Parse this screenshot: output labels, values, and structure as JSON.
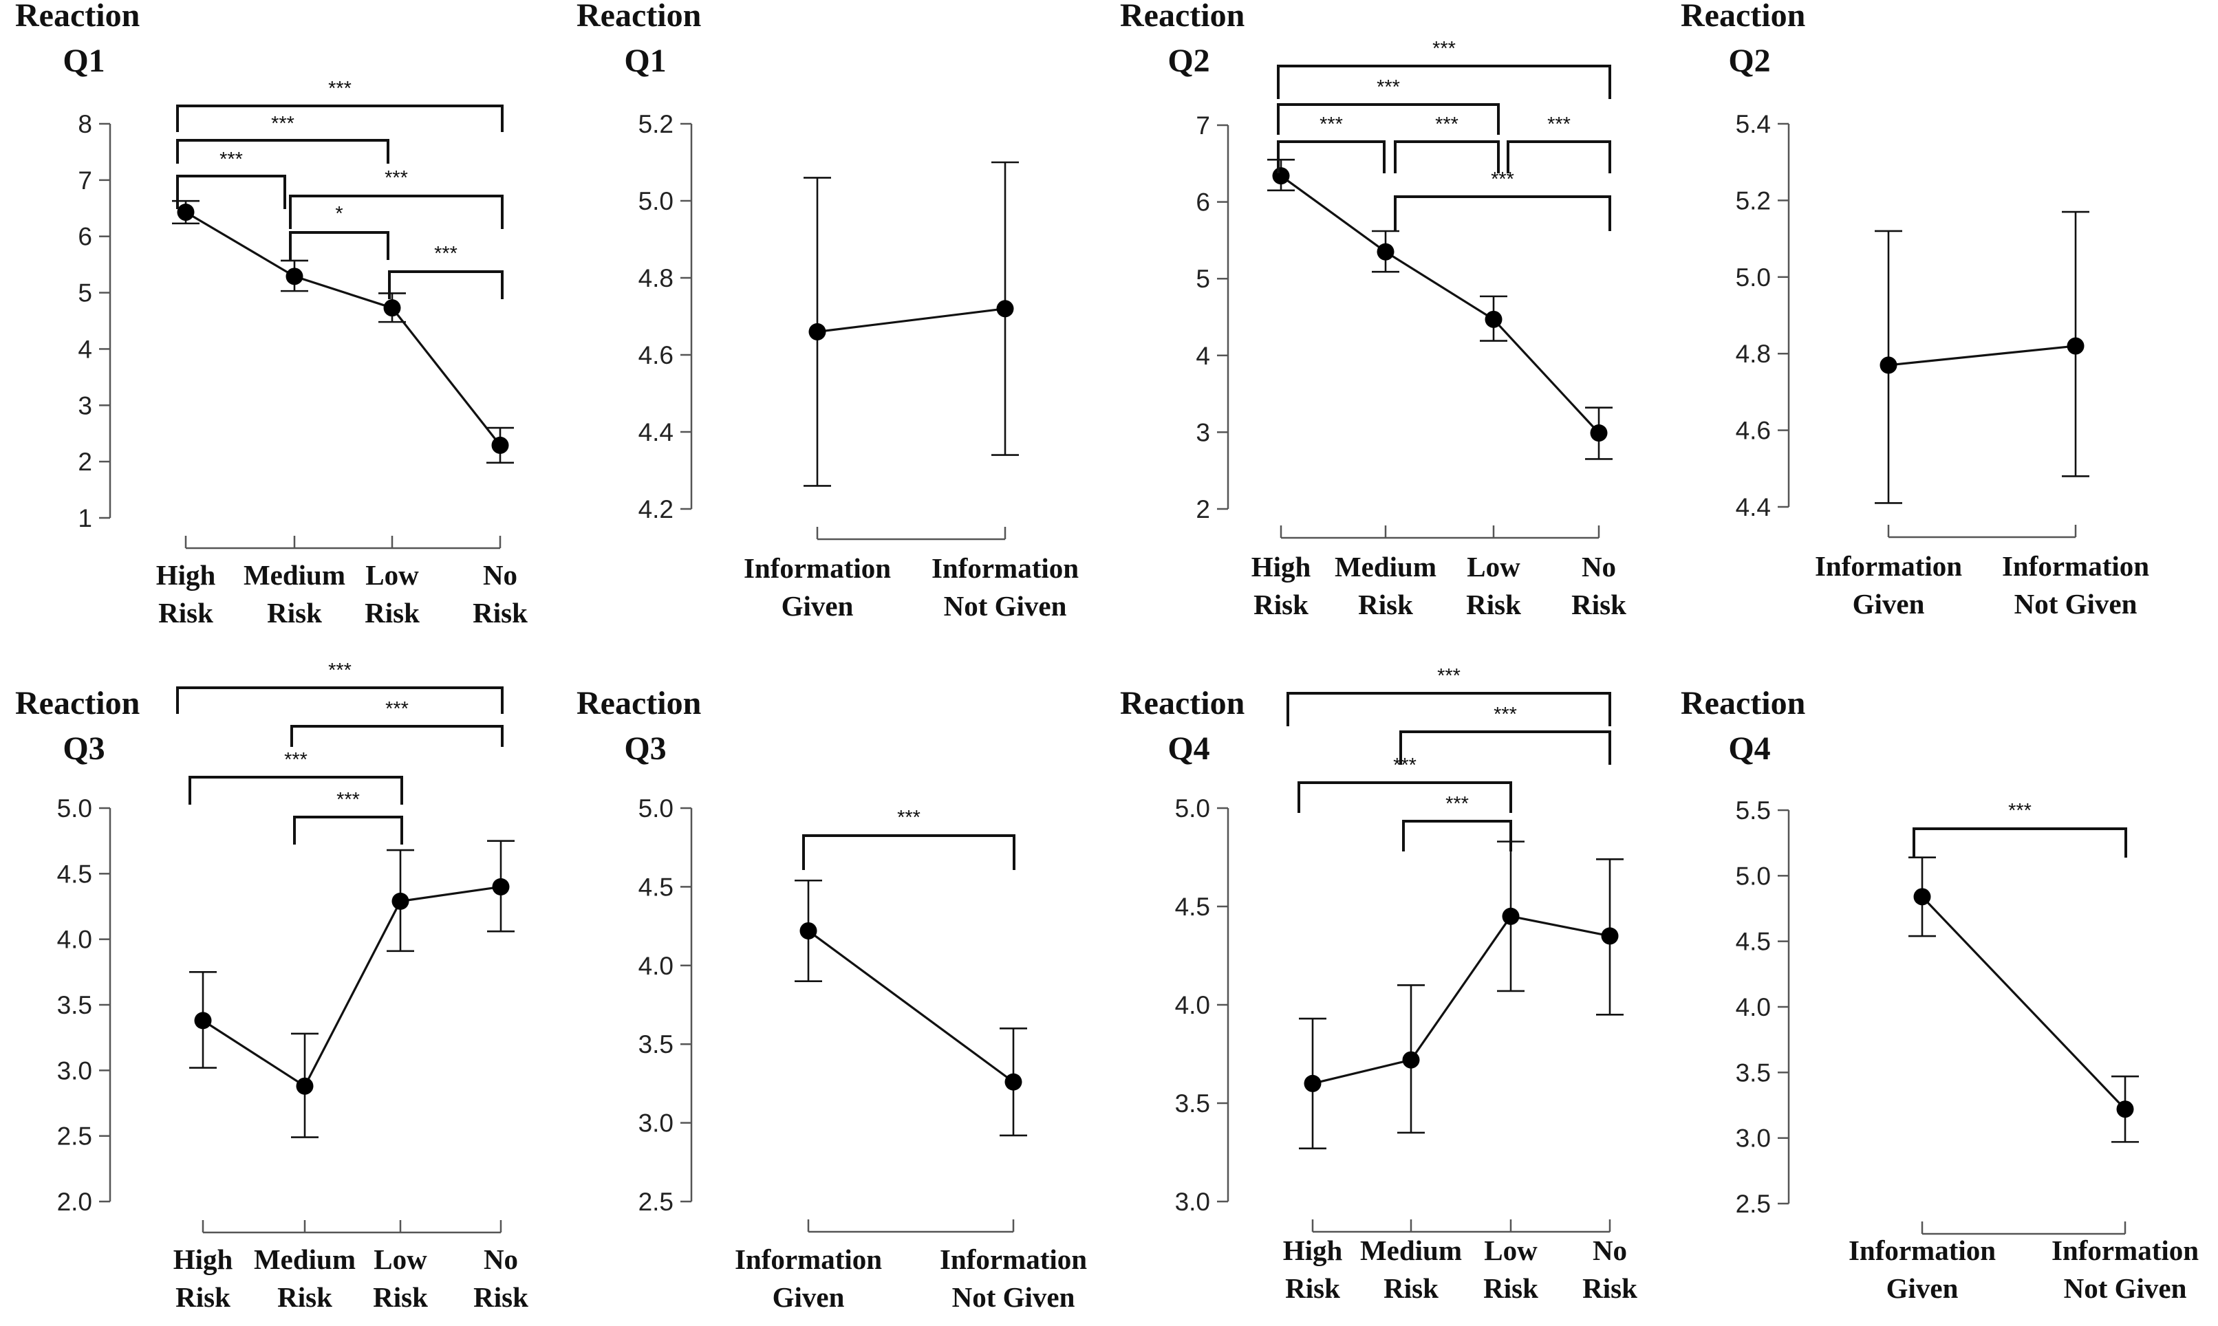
{
  "chart_data": [
    {
      "type": "line",
      "title": [
        "Reaction",
        "Q1"
      ],
      "categories": [
        [
          "High",
          "Risk"
        ],
        [
          "Medium",
          "Risk"
        ],
        [
          "Low",
          "Risk"
        ],
        [
          "No",
          "Risk"
        ]
      ],
      "values": [
        6.43,
        5.29,
        4.73,
        2.29
      ],
      "errors_low": [
        6.23,
        5.03,
        4.48,
        1.98
      ],
      "errors_high": [
        6.63,
        5.57,
        4.99,
        2.6
      ],
      "ylim": [
        1,
        8
      ],
      "yticks": [
        "1",
        "2",
        "3",
        "4",
        "5",
        "6",
        "7",
        "8"
      ],
      "comparisons": [
        {
          "from": 0,
          "to": 3,
          "label": "***"
        },
        {
          "from": 0,
          "to": 2,
          "label": "***"
        },
        {
          "from": 0,
          "to": 1,
          "label": "***"
        },
        {
          "from": 1,
          "to": 3,
          "label": "***"
        },
        {
          "from": 1,
          "to": 2,
          "label": "*"
        },
        {
          "from": 2,
          "to": 3,
          "label": "***"
        }
      ]
    },
    {
      "type": "line",
      "title": [
        "Reaction",
        "Q1"
      ],
      "categories": [
        [
          "Information",
          "Given"
        ],
        [
          "Information",
          "Not Given"
        ]
      ],
      "values": [
        4.66,
        4.72
      ],
      "errors_low": [
        4.26,
        4.34
      ],
      "errors_high": [
        5.06,
        5.1
      ],
      "ylim": [
        4.2,
        5.2
      ],
      "yticks": [
        "4.2",
        "4.4",
        "4.6",
        "4.8",
        "5.0",
        "5.2"
      ],
      "comparisons": []
    },
    {
      "type": "line",
      "title": [
        "Reaction",
        "Q2"
      ],
      "categories": [
        [
          "High",
          "Risk"
        ],
        [
          "Medium",
          "Risk"
        ],
        [
          "Low",
          "Risk"
        ],
        [
          "No",
          "Risk"
        ]
      ],
      "values": [
        6.34,
        5.35,
        4.47,
        2.99
      ],
      "errors_low": [
        6.15,
        5.09,
        4.19,
        2.65
      ],
      "errors_high": [
        6.55,
        5.62,
        4.77,
        3.32
      ],
      "ylim": [
        2,
        7
      ],
      "yticks": [
        "2",
        "3",
        "4",
        "5",
        "6",
        "7"
      ],
      "comparisons": [
        {
          "from": 0,
          "to": 3,
          "label": "***"
        },
        {
          "from": 0,
          "to": 2,
          "label": "***"
        },
        {
          "from": 0,
          "to": 1,
          "label": "***"
        },
        {
          "from": 1,
          "to": 2,
          "label": "***"
        },
        {
          "from": 2,
          "to": 3,
          "label": "***"
        },
        {
          "from": 1,
          "to": 3,
          "label": "***"
        }
      ]
    },
    {
      "type": "line",
      "title": [
        "Reaction",
        "Q2"
      ],
      "categories": [
        [
          "Information",
          "Given"
        ],
        [
          "Information",
          "Not Given"
        ]
      ],
      "values": [
        4.77,
        4.82
      ],
      "errors_low": [
        4.41,
        4.48
      ],
      "errors_high": [
        5.12,
        5.17
      ],
      "ylim": [
        4.4,
        5.4
      ],
      "yticks": [
        "4.4",
        "4.6",
        "4.8",
        "5.0",
        "5.2",
        "5.4"
      ],
      "comparisons": []
    },
    {
      "type": "line",
      "title": [
        "Reaction",
        "Q3"
      ],
      "categories": [
        [
          "High",
          "Risk"
        ],
        [
          "Medium",
          "Risk"
        ],
        [
          "Low",
          "Risk"
        ],
        [
          "No",
          "Risk"
        ]
      ],
      "values": [
        3.38,
        2.88,
        4.29,
        4.4
      ],
      "errors_low": [
        3.02,
        2.49,
        3.91,
        4.06
      ],
      "errors_high": [
        3.75,
        3.28,
        4.68,
        4.75
      ],
      "ylim": [
        2.0,
        5.0
      ],
      "yticks": [
        "2.0",
        "2.5",
        "3.0",
        "3.5",
        "4.0",
        "4.5",
        "5.0"
      ],
      "comparisons": [
        {
          "from": 0,
          "to": 3,
          "label": "***"
        },
        {
          "from": 1,
          "to": 3,
          "label": "***"
        },
        {
          "from": 0,
          "to": 2,
          "label": "***"
        },
        {
          "from": 1,
          "to": 2,
          "label": "***"
        }
      ]
    },
    {
      "type": "line",
      "title": [
        "Reaction",
        "Q3"
      ],
      "categories": [
        [
          "Information",
          "Given"
        ],
        [
          "Information",
          "Not Given"
        ]
      ],
      "values": [
        4.22,
        3.26
      ],
      "errors_low": [
        3.9,
        2.92
      ],
      "errors_high": [
        4.54,
        3.6
      ],
      "ylim": [
        2.5,
        5.0
      ],
      "yticks": [
        "2.5",
        "3.0",
        "3.5",
        "4.0",
        "4.5",
        "5.0"
      ],
      "comparisons": [
        {
          "from": 0,
          "to": 1,
          "label": "***"
        }
      ]
    },
    {
      "type": "line",
      "title": [
        "Reaction",
        "Q4"
      ],
      "categories": [
        [
          "High",
          "Risk"
        ],
        [
          "Medium",
          "Risk"
        ],
        [
          "Low",
          "Risk"
        ],
        [
          "No",
          "Risk"
        ]
      ],
      "values": [
        3.6,
        3.72,
        4.45,
        4.35
      ],
      "errors_low": [
        3.27,
        3.35,
        4.07,
        3.95
      ],
      "errors_high": [
        3.93,
        4.1,
        4.83,
        4.74
      ],
      "ylim": [
        3.0,
        5.0
      ],
      "yticks": [
        "3.0",
        "3.5",
        "4.0",
        "4.5",
        "5.0"
      ],
      "comparisons": [
        {
          "from": 0,
          "to": 3,
          "label": "***"
        },
        {
          "from": 1,
          "to": 3,
          "label": "***"
        },
        {
          "from": 0,
          "to": 2,
          "label": "***"
        },
        {
          "from": 1,
          "to": 2,
          "label": "***"
        }
      ]
    },
    {
      "type": "line",
      "title": [
        "Reaction",
        "Q4"
      ],
      "categories": [
        [
          "Information",
          "Given"
        ],
        [
          "Information",
          "Not Given"
        ]
      ],
      "values": [
        4.84,
        3.22
      ],
      "errors_low": [
        4.54,
        2.97
      ],
      "errors_high": [
        5.14,
        3.47
      ],
      "ylim": [
        2.5,
        5.5
      ],
      "yticks": [
        "2.5",
        "3.0",
        "3.5",
        "4.0",
        "4.5",
        "5.0",
        "5.5"
      ],
      "comparisons": [
        {
          "from": 0,
          "to": 1,
          "label": "***"
        }
      ]
    }
  ]
}
